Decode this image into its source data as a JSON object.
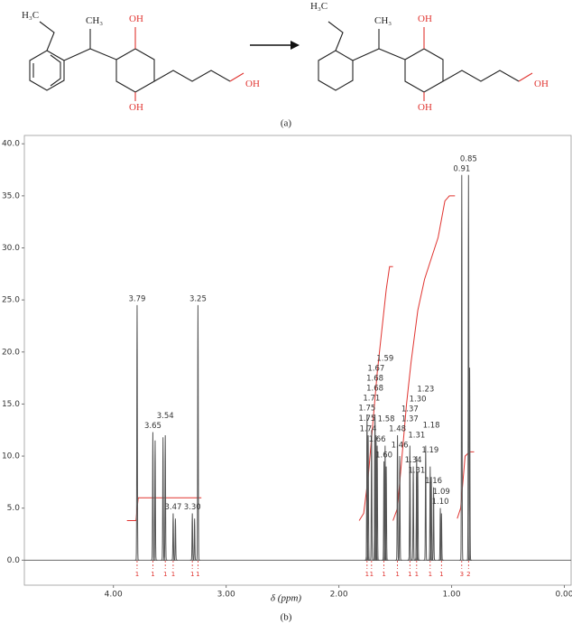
{
  "reaction": {
    "reactant": {
      "ethyl": "H₃C",
      "methyl": "CH₃",
      "oh_top": "OH",
      "oh_bottom": "OH",
      "oh_chain": "OH"
    },
    "product": {
      "ethyl": "H₃C",
      "methyl": "CH₃",
      "oh_top": "OH",
      "oh_bottom": "OH",
      "oh_chain": "OH"
    },
    "caption": "(a)"
  },
  "chart_data": {
    "type": "nmr",
    "caption": "(b)",
    "x_label": "δ (ppm)",
    "xlim": [
      4.79,
      -0.06
    ],
    "ylim": [
      -2.4,
      40.8
    ],
    "xticks": [
      {
        "value": 4,
        "label": "4.00"
      },
      {
        "value": 3,
        "label": "3.00"
      },
      {
        "value": 2,
        "label": "2.00"
      },
      {
        "value": 1,
        "label": "1.00"
      },
      {
        "value": 0,
        "label": "0.00"
      }
    ],
    "yticks": [
      {
        "value": 0,
        "label": "0.0"
      },
      {
        "value": 5,
        "label": "5.0"
      },
      {
        "value": 10,
        "label": "10.0"
      },
      {
        "value": 15,
        "label": "15.0"
      },
      {
        "value": 20,
        "label": "20.0"
      },
      {
        "value": 25,
        "label": "25.0"
      },
      {
        "value": 30,
        "label": "30.0"
      },
      {
        "value": 35,
        "label": "35.0"
      },
      {
        "value": 40,
        "label": "40.0"
      }
    ],
    "peaks": {
      "color": "#555555",
      "x": [
        3.79,
        3.65,
        3.63,
        3.56,
        3.54,
        3.47,
        3.45,
        3.3,
        3.28,
        3.25,
        1.75,
        1.75,
        1.74,
        1.71,
        1.68,
        1.68,
        1.67,
        1.66,
        1.6,
        1.59,
        1.58,
        1.48,
        1.46,
        1.37,
        1.37,
        1.34,
        1.31,
        1.31,
        1.3,
        1.23,
        1.19,
        1.18,
        1.16,
        1.1,
        1.09,
        0.91,
        0.85,
        0.84
      ],
      "values": [
        24.5,
        12.3,
        11.5,
        11.8,
        12.0,
        4.5,
        4.0,
        4.5,
        4.0,
        24.5,
        13.0,
        14.0,
        12.0,
        12.5,
        14.0,
        13.5,
        12.0,
        11.0,
        9.5,
        11.0,
        9.0,
        12.0,
        10.0,
        11.0,
        10.0,
        9.0,
        10.0,
        8.0,
        8.5,
        11.0,
        9.0,
        8.0,
        7.0,
        5.0,
        4.5,
        37.0,
        37.0,
        18.5
      ],
      "labels": [
        "3.79",
        "3.65",
        null,
        null,
        "3.54",
        "3.47",
        null,
        "3.30",
        null,
        "3.25",
        "1.75",
        "1.75",
        "1.74",
        "1.71",
        "1.68",
        "1.68",
        "1.67",
        "1.66",
        "1.60",
        "1.59",
        "1.58",
        "1.48",
        "1.46",
        "1.37",
        "1.37",
        "1.34",
        "1.31",
        "1.31",
        "1.30",
        "1.23",
        "1.19",
        "1.18",
        "1.16",
        "1.10",
        "1.09",
        "0.91",
        "0.85",
        null
      ]
    },
    "integrals": [
      {
        "color": "#e0332f",
        "x": [
          3.88,
          3.8,
          3.78,
          3.22
        ],
        "y": [
          3.8,
          3.8,
          6.0,
          6.0
        ]
      },
      {
        "color": "#e0332f",
        "x": [
          1.82,
          1.78,
          1.74,
          1.7,
          1.66,
          1.62,
          1.58,
          1.55,
          1.52
        ],
        "y": [
          3.8,
          4.5,
          8.0,
          13.0,
          18.0,
          22.0,
          26.0,
          28.2,
          28.2
        ]
      },
      {
        "color": "#e0332f",
        "x": [
          1.52,
          1.48,
          1.44,
          1.4,
          1.36,
          1.3,
          1.24,
          1.18,
          1.12,
          1.06,
          1.02,
          0.97
        ],
        "y": [
          3.8,
          5.0,
          10.0,
          15.0,
          19.0,
          24.0,
          27.0,
          29.0,
          31.0,
          34.5,
          35.0,
          35.0
        ]
      },
      {
        "color": "#e0332f",
        "x": [
          0.95,
          0.92,
          0.88,
          0.84,
          0.8
        ],
        "y": [
          4.0,
          5.0,
          10.0,
          10.4,
          10.4
        ]
      }
    ],
    "integral_marks": {
      "color": "#e0332f",
      "x": [
        3.79,
        3.65,
        3.54,
        3.47,
        3.3,
        3.25,
        1.75,
        1.71,
        1.6,
        1.48,
        1.37,
        1.31,
        1.19,
        1.09,
        0.91,
        0.85
      ],
      "labels": [
        "1",
        "1",
        "1",
        "1",
        "1",
        "1",
        "1",
        "1",
        "1",
        "1",
        "1",
        "1",
        "1",
        "1",
        "3",
        "2"
      ]
    }
  }
}
